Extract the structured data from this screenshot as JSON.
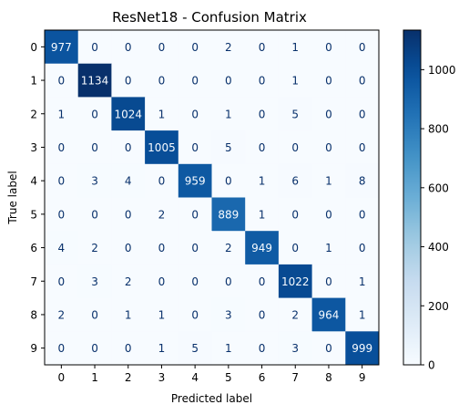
{
  "chart_data": {
    "type": "heatmap",
    "title": "ResNet18 - Confusion Matrix",
    "xlabel": "Predicted label",
    "ylabel": "True label",
    "x_categories": [
      "0",
      "1",
      "2",
      "3",
      "4",
      "5",
      "6",
      "7",
      "8",
      "9"
    ],
    "y_categories": [
      "0",
      "1",
      "2",
      "3",
      "4",
      "5",
      "6",
      "7",
      "8",
      "9"
    ],
    "values": [
      [
        977,
        0,
        0,
        0,
        0,
        2,
        0,
        1,
        0,
        0
      ],
      [
        0,
        1134,
        0,
        0,
        0,
        0,
        0,
        1,
        0,
        0
      ],
      [
        1,
        0,
        1024,
        1,
        0,
        1,
        0,
        5,
        0,
        0
      ],
      [
        0,
        0,
        0,
        1005,
        0,
        5,
        0,
        0,
        0,
        0
      ],
      [
        0,
        3,
        4,
        0,
        959,
        0,
        1,
        6,
        1,
        8
      ],
      [
        0,
        0,
        0,
        2,
        0,
        889,
        1,
        0,
        0,
        0
      ],
      [
        4,
        2,
        0,
        0,
        0,
        2,
        949,
        0,
        1,
        0
      ],
      [
        0,
        3,
        2,
        0,
        0,
        0,
        0,
        1022,
        0,
        1
      ],
      [
        2,
        0,
        1,
        1,
        0,
        3,
        0,
        2,
        964,
        1
      ],
      [
        0,
        0,
        0,
        1,
        5,
        1,
        0,
        3,
        0,
        999
      ]
    ],
    "colormap": "Blues",
    "color_range": [
      0,
      1134
    ],
    "colorbar_ticks": [
      0,
      200,
      400,
      600,
      800,
      1000
    ],
    "colors": {
      "low": "#f7fbff",
      "high": "#08306b",
      "text_dark": "#08306b",
      "text_light": "#f7fbff"
    }
  }
}
